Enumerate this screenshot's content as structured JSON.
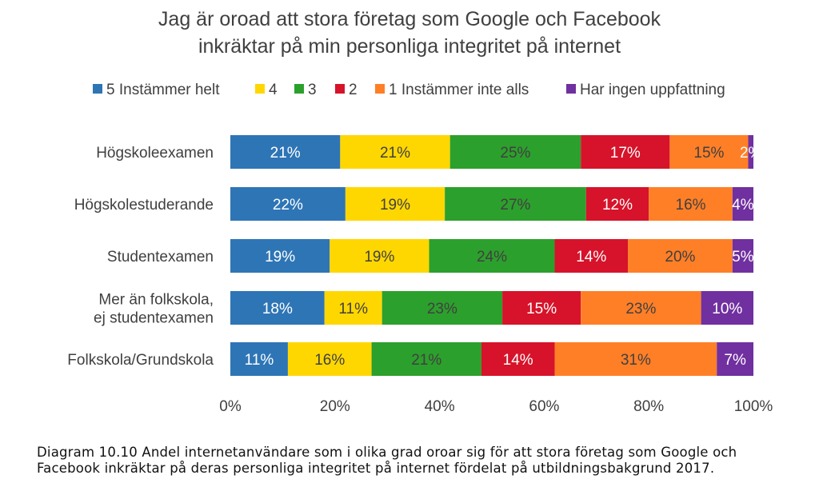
{
  "chart_data": {
    "type": "bar",
    "orientation": "horizontal",
    "stacked": true,
    "title": "Jag är oroad att stora företag som Google och Facebook inkräktar på min personliga integritet på internet",
    "title_lines": [
      "Jag är oroad att stora företag som Google och Facebook",
      "inkräktar på min personliga integritet på internet"
    ],
    "legend_position": "top",
    "categories": [
      "Högskoleexamen",
      "Högskolestuderande",
      "Studentexamen",
      "Mer än folkskola, ej studentexamen",
      "Folkskola/Grundskola"
    ],
    "category_lines": [
      [
        "Högskoleexamen"
      ],
      [
        "Högskolestuderande"
      ],
      [
        "Studentexamen"
      ],
      [
        "Mer än folkskola,",
        "ej studentexamen"
      ],
      [
        "Folkskola/Grundskola"
      ]
    ],
    "series": [
      {
        "name": "5 Instämmer helt",
        "color": "#2e75b6",
        "values": [
          21,
          22,
          19,
          18,
          11
        ]
      },
      {
        "name": "4",
        "color": "#ffd700",
        "values": [
          21,
          19,
          19,
          11,
          16
        ]
      },
      {
        "name": "3",
        "color": "#2ca02c",
        "values": [
          25,
          27,
          24,
          23,
          21
        ]
      },
      {
        "name": "2",
        "color": "#d6132a",
        "values": [
          17,
          12,
          14,
          15,
          14
        ]
      },
      {
        "name": "1 Instämmer inte alls",
        "color": "#ff7f27",
        "values": [
          15,
          16,
          20,
          23,
          31
        ]
      },
      {
        "name": "Har ingen uppfattning",
        "color": "#7030a0",
        "values": [
          2,
          4,
          5,
          10,
          7
        ]
      }
    ],
    "label_colors": [
      "#ffffff",
      "#404040",
      "#404040",
      "#ffffff",
      "#404040",
      "#ffffff"
    ],
    "xlim": [
      0,
      100
    ],
    "x_ticks": [
      "0%",
      "20%",
      "40%",
      "60%",
      "80%",
      "100%"
    ],
    "grid": false
  },
  "caption": "Diagram 10.10 Andel internetanvändare som i olika grad oroar sig för att stora företag som Google och Facebook inkräktar på deras personliga integritet på internet fördelat på utbildningsbakgrund 2017."
}
